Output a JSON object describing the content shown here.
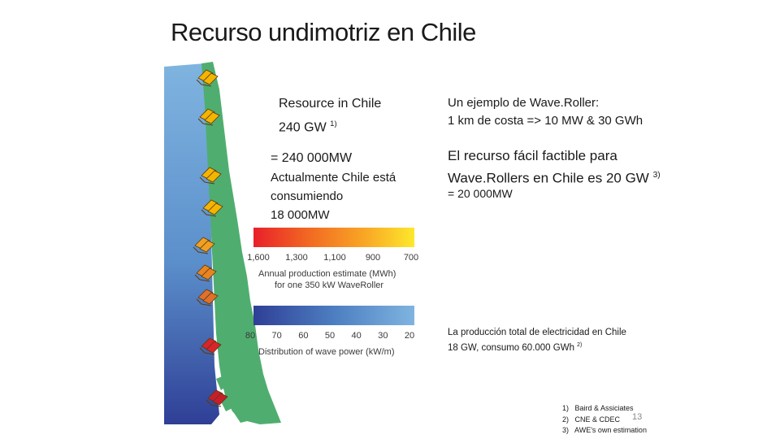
{
  "title": "Recurso undimotriz en Chile",
  "resource": {
    "line1": "Resource in Chile",
    "line2": "240 GW",
    "sup": "1)"
  },
  "left_block": {
    "line1": "= 240 000MW",
    "line2": "Actualmente Chile está",
    "line3": "consumiendo",
    "line4": "18 000MW"
  },
  "right_block": {
    "ex_line1": "Un ejemplo de Wave.Roller:",
    "ex_line2": "1 km de costa => 10 MW & 30 GWh",
    "feas_line1": "El recurso fácil factible para",
    "feas_line2": "Wave.Rollers en Chile es 20 GW",
    "feas_sup": "3)",
    "feas_line3": "= 20 000MW"
  },
  "production": {
    "line1": "La producción total de electricidad en Chile",
    "line2": "18 GW, consumo 60.000 GWh",
    "sup": "2)"
  },
  "references": [
    {
      "num": "1)",
      "text": "Baird & Assiciates"
    },
    {
      "num": "2)",
      "text": "CNE & CDEC"
    },
    {
      "num": "3)",
      "text": "AWE's own estimation"
    }
  ],
  "page_number": "13",
  "legend_production": {
    "ticks": [
      "1,600",
      "1,300",
      "1,100",
      "900",
      "700"
    ],
    "label_line1": "Annual production estimate (MWh)",
    "label_line2": "for one 350 kW WaveRoller",
    "colors": [
      "#e8202a",
      "#f26a22",
      "#f9a825",
      "#fde82c"
    ]
  },
  "legend_wave": {
    "ticks": [
      "80",
      "70",
      "60",
      "50",
      "40",
      "30",
      "20"
    ],
    "label": "Distribution of wave power (kW/m)",
    "colors": [
      "#2f3f96",
      "#4d7ec1",
      "#7fb4e0"
    ]
  },
  "map_colors": {
    "land": "#4fae6f",
    "sea_north": "#7fb4e0",
    "sea_south": "#2f3f96"
  }
}
